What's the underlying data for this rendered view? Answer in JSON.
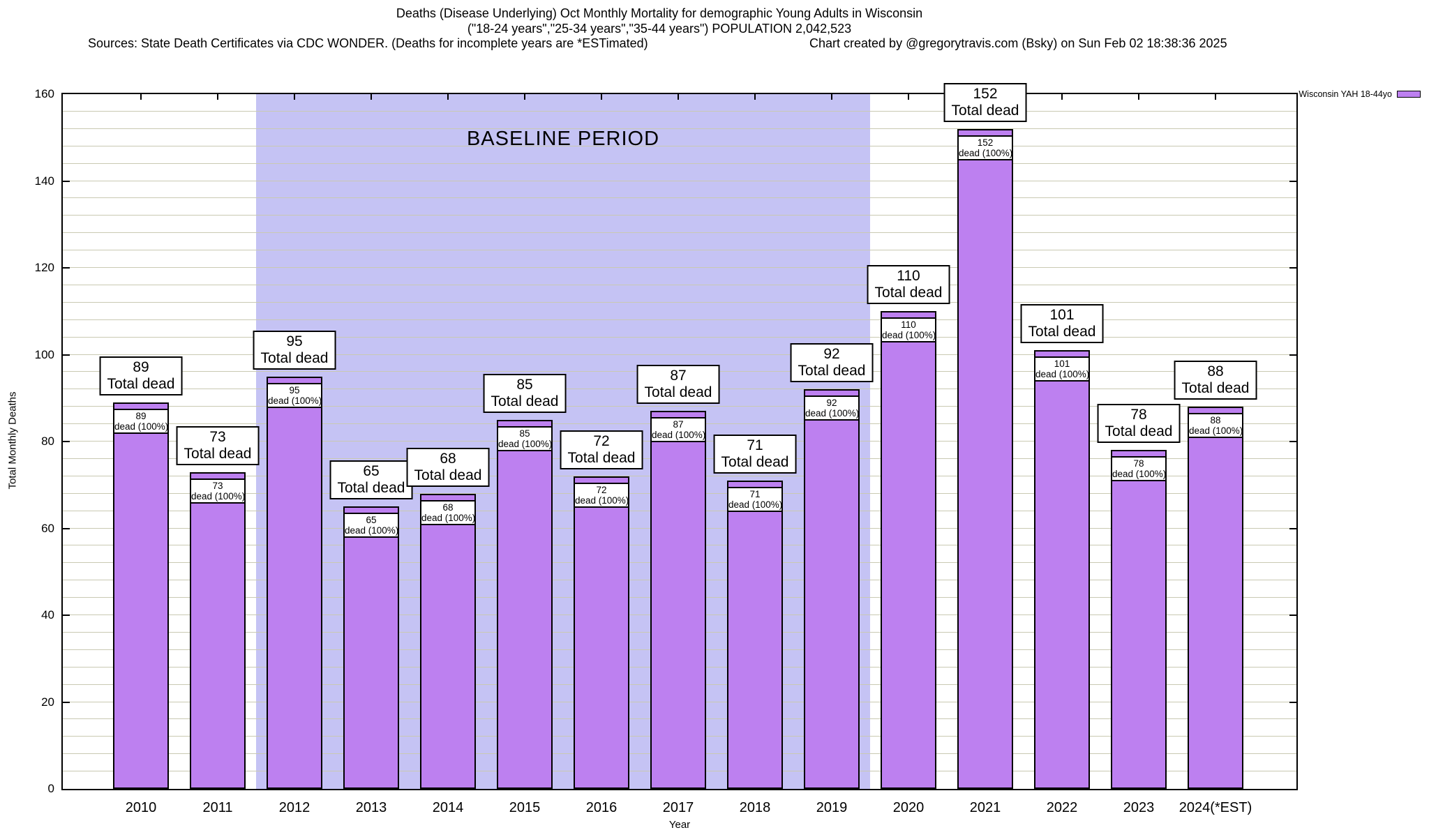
{
  "header": {
    "title_line1": "Deaths (Disease Underlying) Oct Monthly Mortality for demographic Young Adults in Wisconsin",
    "title_line2": "(\"18-24 years\",\"25-34 years\",\"35-44 years\") POPULATION 2,042,523",
    "sources": "Sources: State Death Certificates via CDC WONDER. (Deaths for incomplete years are *ESTimated)",
    "credit": "Chart created by @gregorytravis.com (Bsky) on Sun Feb 02 18:38:36 2025"
  },
  "legend": {
    "label": "Wisconsin YAH 18-44yo",
    "swatch_color": "#bd80f0"
  },
  "chart_data": {
    "type": "bar",
    "title": "Deaths (Disease Underlying) Oct Monthly Mortality for demographic Young Adults in Wisconsin",
    "xlabel": "Year",
    "ylabel": "Total Monthly Deaths",
    "ylim": [
      0,
      160
    ],
    "ytick_step": 20,
    "grid_step": 4,
    "grid": true,
    "legend_position": "top-right-outside",
    "categories": [
      "2010",
      "2011",
      "2012",
      "2013",
      "2014",
      "2015",
      "2016",
      "2017",
      "2018",
      "2019",
      "2020",
      "2021",
      "2022",
      "2023",
      "2024(*EST)"
    ],
    "series": [
      {
        "name": "Wisconsin YAH 18-44yo",
        "values": [
          89,
          73,
          95,
          65,
          68,
          85,
          72,
          87,
          71,
          92,
          110,
          152,
          101,
          78,
          88
        ]
      }
    ],
    "bar_color": "#bd80f0",
    "bar_border_color": "#000000",
    "annotations": {
      "top_label_line2": "Total dead",
      "inner_label_line2": "dead (100%)",
      "baseline": {
        "label": "BASELINE PERIOD",
        "from_category": "2012",
        "to_category": "2019",
        "color": "#c5c3f4"
      }
    }
  }
}
